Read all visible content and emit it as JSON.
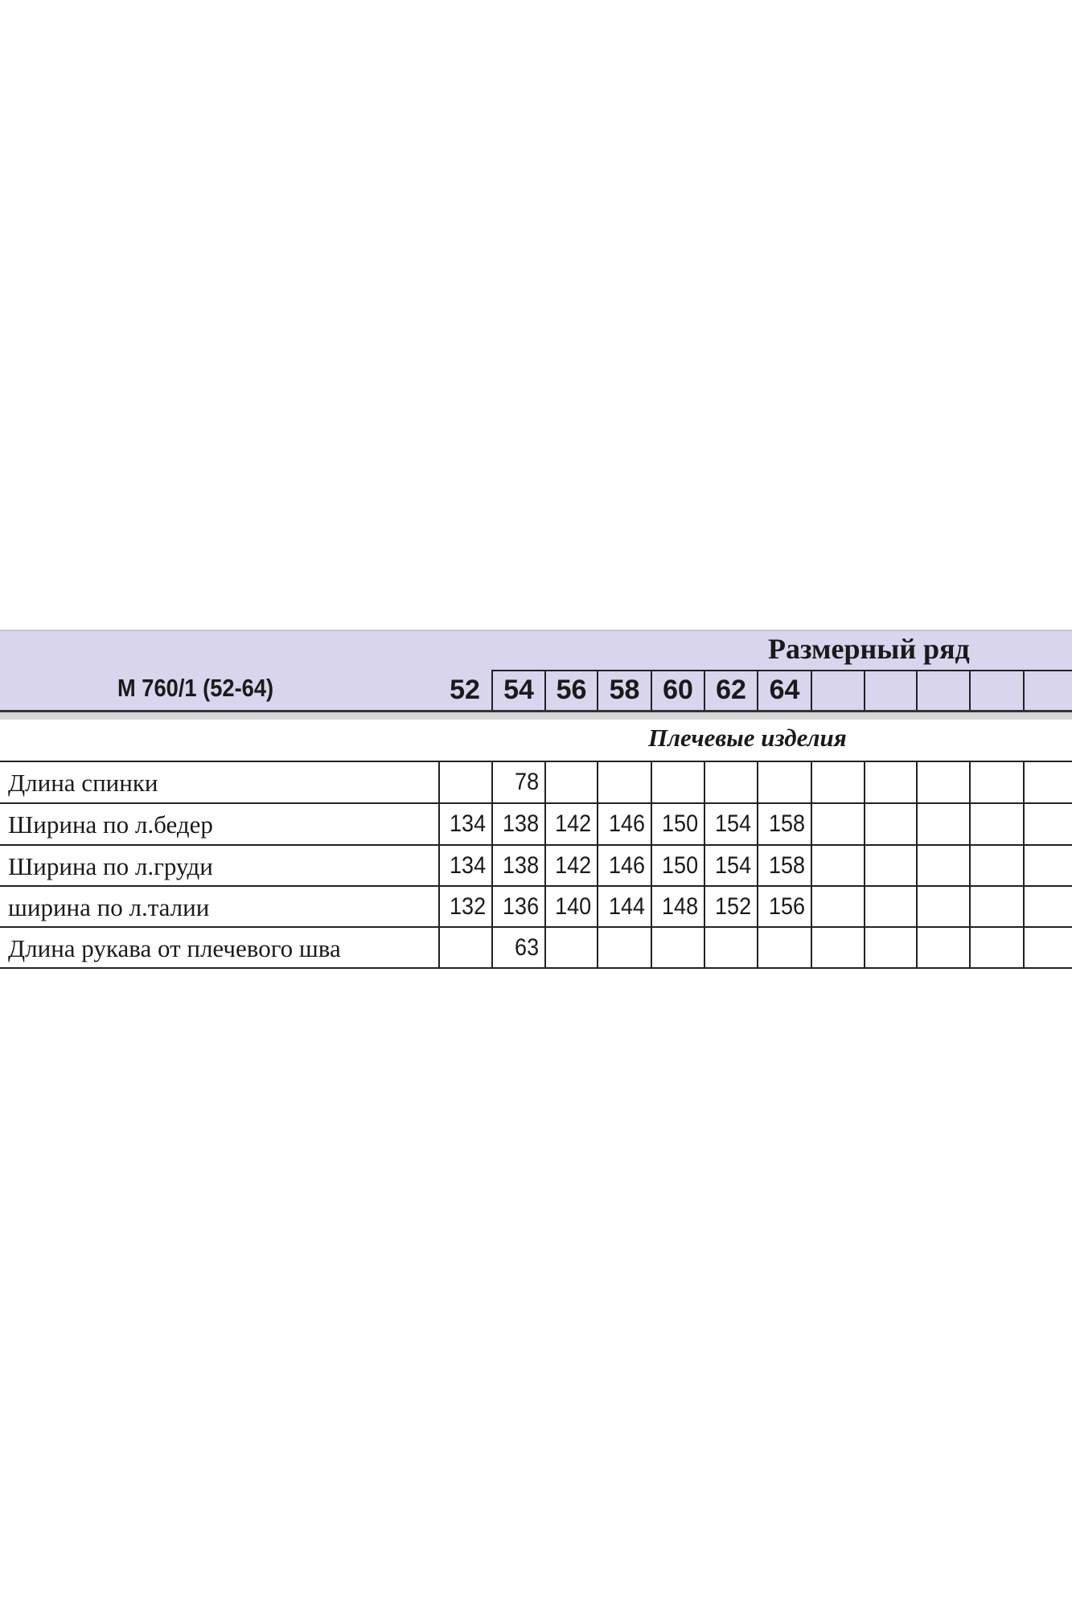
{
  "header": {
    "title": "Размерный ряд",
    "model": "М 760/1 (52-64)",
    "sizes": [
      "52",
      "54",
      "56",
      "58",
      "60",
      "62",
      "64",
      "",
      "",
      "",
      "",
      ""
    ]
  },
  "section": "Плечевые изделия",
  "table": {
    "rows": [
      {
        "label": "Длина спинки",
        "values": [
          "",
          "78",
          "",
          "",
          "",
          "",
          ""
        ]
      },
      {
        "label": "Ширина по л.бедер",
        "values": [
          "134",
          "138",
          "142",
          "146",
          "150",
          "154",
          "158"
        ]
      },
      {
        "label": "Ширина по л.груди",
        "values": [
          "134",
          "138",
          "142",
          "146",
          "150",
          "154",
          "158"
        ]
      },
      {
        "label": "ширина по л.талии",
        "values": [
          "132",
          "136",
          "140",
          "144",
          "148",
          "152",
          "156"
        ]
      },
      {
        "label": "Длина рукава от плечевого шва",
        "values": [
          "",
          "63",
          "",
          "",
          "",
          "",
          ""
        ]
      }
    ]
  },
  "colors": {
    "header_bg": "#d8d5ec"
  }
}
